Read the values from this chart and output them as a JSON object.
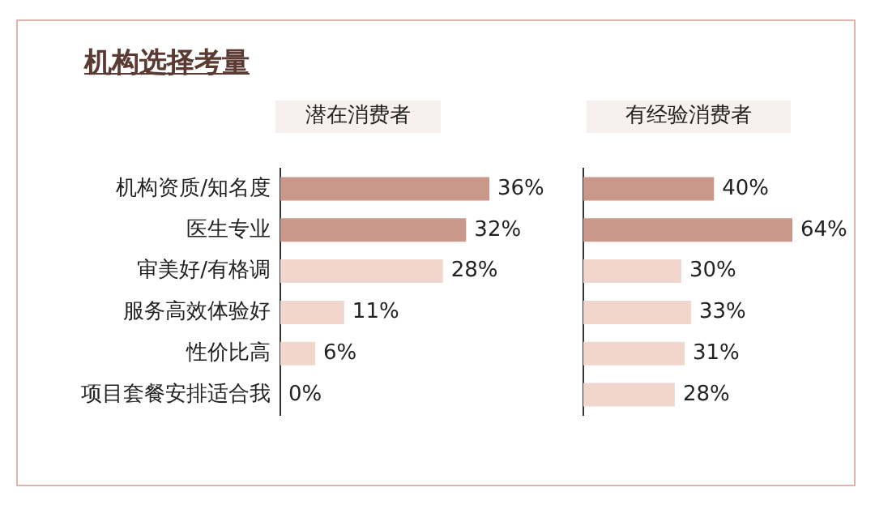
{
  "chart_data": [
    {
      "type": "bar",
      "orientation": "horizontal",
      "title": "机构选择考量",
      "subtitle": "潜在消费者",
      "categories": [
        "机构资质/知名度",
        "医生专业",
        "审美好/有格调",
        "服务高效体验好",
        "性价比高",
        "项目套餐安排适合我"
      ],
      "values": [
        36,
        32,
        28,
        11,
        6,
        0
      ],
      "colors": [
        "#c9988b",
        "#c9988b",
        "#f0d6cd",
        "#f0d6cd",
        "#f0d6cd",
        "#f0d6cd"
      ],
      "value_labels": [
        "36%",
        "32%",
        "28%",
        "11%",
        "6%",
        "0%"
      ],
      "legend": false
    },
    {
      "type": "bar",
      "orientation": "horizontal",
      "subtitle": "有经验消费者",
      "categories": [
        null,
        null,
        null,
        null,
        null,
        null
      ],
      "values": [
        40,
        64,
        30,
        33,
        31,
        28
      ],
      "colors": [
        "#c9988b",
        "#c9988b",
        "#f0d6cd",
        "#f0d6cd",
        "#f0d6cd",
        "#f0d6cd"
      ],
      "value_labels": [
        "40%",
        "64%",
        "30%",
        "33%",
        "31%",
        "28%"
      ],
      "legend": false
    }
  ]
}
